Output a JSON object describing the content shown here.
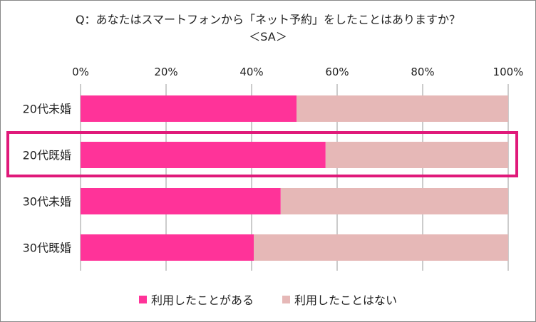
{
  "chart_data": {
    "type": "bar",
    "orientation": "horizontal",
    "stacked": "percent",
    "title": "Q：あなたはスマートフォンから「ネット予約」をしたことはありますか？",
    "subtitle": "＜SA＞",
    "categories": [
      "20代未婚",
      "20代既婚",
      "30代未婚",
      "30代既婚"
    ],
    "series": [
      {
        "name": "利用したことがある",
        "values": [
          50.5,
          57.3,
          46.8,
          40.5
        ],
        "color": "#FF3399"
      },
      {
        "name": "利用したことはない",
        "values": [
          49.5,
          42.7,
          53.2,
          59.5
        ],
        "color": "#E6B8B7"
      }
    ],
    "xlim": [
      0,
      100
    ],
    "xticks": [
      "0%",
      "20%",
      "40%",
      "60%",
      "80%",
      "100%"
    ],
    "grid": true,
    "legend_position": "bottom",
    "highlighted_category": "20代既婚",
    "highlight_color": "#E0197A"
  }
}
